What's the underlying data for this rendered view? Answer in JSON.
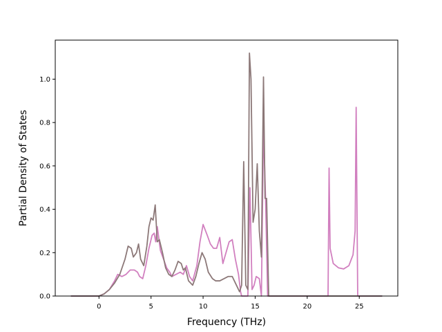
{
  "chart_data": {
    "type": "line",
    "title": "",
    "xlabel": "Frequency (THz)",
    "ylabel": "Partial Density of States",
    "xlim": [
      -4.2,
      28.7
    ],
    "ylim": [
      0.0,
      1.18
    ],
    "xticks": [
      0,
      5,
      10,
      15,
      20,
      25
    ],
    "yticks": [
      0.0,
      0.2,
      0.4,
      0.6,
      0.8,
      1.0
    ],
    "xtick_labels": [
      "0",
      "5",
      "10",
      "15",
      "20",
      "25"
    ],
    "ytick_labels": [
      "0.0",
      "0.2",
      "0.4",
      "0.6",
      "0.8",
      "1.0"
    ],
    "grid": false,
    "legend": "none",
    "series": [
      {
        "color": "#d17fbf",
        "points": [
          [
            -2.7,
            0.0
          ],
          [
            0.0,
            0.0
          ],
          [
            0.5,
            0.01
          ],
          [
            1.0,
            0.03
          ],
          [
            1.5,
            0.07
          ],
          [
            1.8,
            0.1
          ],
          [
            2.2,
            0.09
          ],
          [
            2.6,
            0.1
          ],
          [
            3.0,
            0.12
          ],
          [
            3.4,
            0.12
          ],
          [
            3.7,
            0.11
          ],
          [
            3.9,
            0.09
          ],
          [
            4.2,
            0.08
          ],
          [
            4.5,
            0.14
          ],
          [
            4.8,
            0.22
          ],
          [
            5.1,
            0.28
          ],
          [
            5.3,
            0.29
          ],
          [
            5.45,
            0.25
          ],
          [
            5.6,
            0.32
          ],
          [
            5.9,
            0.21
          ],
          [
            6.2,
            0.17
          ],
          [
            6.5,
            0.13
          ],
          [
            6.8,
            0.11
          ],
          [
            7.0,
            0.09
          ],
          [
            7.4,
            0.1
          ],
          [
            7.8,
            0.11
          ],
          [
            8.1,
            0.1
          ],
          [
            8.4,
            0.14
          ],
          [
            8.7,
            0.09
          ],
          [
            9.0,
            0.07
          ],
          [
            9.4,
            0.14
          ],
          [
            9.7,
            0.25
          ],
          [
            10.0,
            0.33
          ],
          [
            10.4,
            0.28
          ],
          [
            10.7,
            0.24
          ],
          [
            11.0,
            0.22
          ],
          [
            11.3,
            0.22
          ],
          [
            11.6,
            0.27
          ],
          [
            11.9,
            0.15
          ],
          [
            12.2,
            0.2
          ],
          [
            12.5,
            0.25
          ],
          [
            12.8,
            0.26
          ],
          [
            13.1,
            0.17
          ],
          [
            13.4,
            0.1
          ],
          [
            13.6,
            0.02
          ],
          [
            13.7,
            0.0
          ],
          [
            14.3,
            0.0
          ],
          [
            14.5,
            0.5
          ],
          [
            14.7,
            0.03
          ],
          [
            14.9,
            0.05
          ],
          [
            15.1,
            0.09
          ],
          [
            15.4,
            0.08
          ],
          [
            15.6,
            0.0
          ],
          [
            15.8,
            0.78
          ],
          [
            16.0,
            0.45
          ],
          [
            16.2,
            0.0
          ],
          [
            22.0,
            0.0
          ],
          [
            22.1,
            0.59
          ],
          [
            22.2,
            0.22
          ],
          [
            22.5,
            0.15
          ],
          [
            23.0,
            0.13
          ],
          [
            23.5,
            0.125
          ],
          [
            24.0,
            0.14
          ],
          [
            24.4,
            0.19
          ],
          [
            24.6,
            0.3
          ],
          [
            24.7,
            0.87
          ],
          [
            24.85,
            0.0
          ],
          [
            27.2,
            0.0
          ]
        ]
      },
      {
        "color": "#8c7878",
        "points": [
          [
            -2.7,
            0.0
          ],
          [
            0.0,
            0.0
          ],
          [
            0.5,
            0.01
          ],
          [
            1.0,
            0.03
          ],
          [
            1.5,
            0.06
          ],
          [
            2.0,
            0.1
          ],
          [
            2.5,
            0.17
          ],
          [
            2.8,
            0.23
          ],
          [
            3.1,
            0.22
          ],
          [
            3.3,
            0.18
          ],
          [
            3.6,
            0.2
          ],
          [
            3.8,
            0.24
          ],
          [
            4.0,
            0.17
          ],
          [
            4.3,
            0.14
          ],
          [
            4.6,
            0.23
          ],
          [
            4.8,
            0.32
          ],
          [
            5.0,
            0.36
          ],
          [
            5.2,
            0.35
          ],
          [
            5.4,
            0.42
          ],
          [
            5.6,
            0.25
          ],
          [
            5.8,
            0.26
          ],
          [
            6.1,
            0.2
          ],
          [
            6.4,
            0.13
          ],
          [
            6.7,
            0.1
          ],
          [
            7.0,
            0.09
          ],
          [
            7.3,
            0.12
          ],
          [
            7.6,
            0.16
          ],
          [
            7.9,
            0.15
          ],
          [
            8.1,
            0.12
          ],
          [
            8.3,
            0.13
          ],
          [
            8.6,
            0.07
          ],
          [
            9.0,
            0.05
          ],
          [
            9.3,
            0.09
          ],
          [
            9.6,
            0.15
          ],
          [
            9.9,
            0.2
          ],
          [
            10.2,
            0.17
          ],
          [
            10.5,
            0.11
          ],
          [
            10.9,
            0.08
          ],
          [
            11.2,
            0.07
          ],
          [
            11.6,
            0.07
          ],
          [
            12.0,
            0.08
          ],
          [
            12.4,
            0.09
          ],
          [
            12.8,
            0.09
          ],
          [
            13.2,
            0.05
          ],
          [
            13.5,
            0.02
          ],
          [
            13.7,
            0.05
          ],
          [
            13.9,
            0.62
          ],
          [
            14.1,
            0.05
          ],
          [
            14.3,
            0.03
          ],
          [
            14.45,
            1.12
          ],
          [
            14.6,
            1.0
          ],
          [
            14.8,
            0.34
          ],
          [
            15.0,
            0.4
          ],
          [
            15.2,
            0.61
          ],
          [
            15.4,
            0.3
          ],
          [
            15.6,
            0.18
          ],
          [
            15.8,
            1.01
          ],
          [
            15.95,
            0.45
          ],
          [
            16.1,
            0.45
          ],
          [
            16.3,
            0.0
          ],
          [
            27.2,
            0.0
          ]
        ]
      }
    ]
  }
}
